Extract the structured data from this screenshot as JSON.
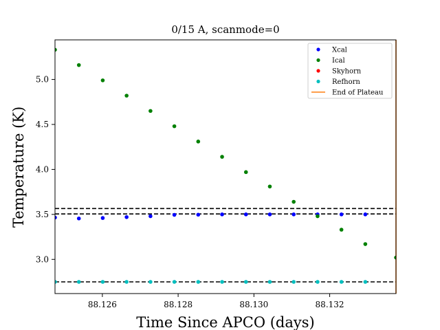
{
  "chart_data": {
    "type": "scatter",
    "title": "0/15 A, scanmode=0",
    "xlabel": "Time Since APCO (days)",
    "ylabel": "Temperature (K)",
    "xlim": [
      88.12475,
      88.13375
    ],
    "ylim": [
      2.62,
      5.44
    ],
    "xticks": [
      88.126,
      88.128,
      88.13,
      88.132
    ],
    "xtick_labels": [
      "88.126",
      "88.128",
      "88.130",
      "88.132"
    ],
    "yticks": [
      3.0,
      3.5,
      4.0,
      4.5,
      5.0
    ],
    "ytick_labels": [
      "3.0",
      "3.5",
      "4.0",
      "4.5",
      "5.0"
    ],
    "grid": false,
    "legend_position": "top-right",
    "series": [
      {
        "name": "Xcal",
        "color": "#0000ff",
        "marker": "dot",
        "x": [
          88.12475,
          88.12538,
          88.12601,
          88.12664,
          88.12727,
          88.1279,
          88.12853,
          88.12916,
          88.12979,
          88.13042,
          88.13105,
          88.13168,
          88.13231,
          88.13294
        ],
        "y": [
          3.465,
          3.455,
          3.46,
          3.47,
          3.48,
          3.495,
          3.497,
          3.5,
          3.5,
          3.5,
          3.5,
          3.5,
          3.5,
          3.5
        ]
      },
      {
        "name": "Ical",
        "color": "#008000",
        "marker": "dot",
        "x": [
          88.12475,
          88.12538,
          88.12601,
          88.12664,
          88.12727,
          88.1279,
          88.12853,
          88.12916,
          88.12979,
          88.13042,
          88.13105,
          88.13168,
          88.13231,
          88.13294,
          88.13375
        ],
        "y": [
          5.33,
          5.16,
          4.99,
          4.82,
          4.65,
          4.48,
          4.31,
          4.14,
          3.97,
          3.81,
          3.64,
          3.48,
          3.33,
          3.17,
          3.02
        ]
      },
      {
        "name": "Skyhorn",
        "color": "#ff0000",
        "marker": "dot",
        "x": [],
        "y": []
      },
      {
        "name": "Refhorn",
        "color": "#00bfbf",
        "marker": "dot",
        "x": [
          88.12475,
          88.12538,
          88.12601,
          88.12664,
          88.12727,
          88.1279,
          88.12853,
          88.12916,
          88.12979,
          88.13042,
          88.13105,
          88.13168,
          88.13231,
          88.13294
        ],
        "y": [
          2.75,
          2.75,
          2.75,
          2.75,
          2.75,
          2.75,
          2.75,
          2.75,
          2.75,
          2.75,
          2.75,
          2.75,
          2.75,
          2.75
        ]
      }
    ],
    "vertical_lines": [
      {
        "name": "End of Plateau",
        "color": "#ff7f0e",
        "x": 88.13375
      }
    ],
    "horizontal_lines": [
      {
        "y": 3.565,
        "color": "#000000",
        "style": "dashed"
      },
      {
        "y": 3.505,
        "color": "#000000",
        "style": "dashed"
      },
      {
        "y": 2.75,
        "color": "#000000",
        "style": "dashed"
      }
    ],
    "legend": [
      {
        "label": "Xcal",
        "kind": "dot",
        "color": "#0000ff"
      },
      {
        "label": "Ical",
        "kind": "dot",
        "color": "#008000"
      },
      {
        "label": "Skyhorn",
        "kind": "dot",
        "color": "#ff0000"
      },
      {
        "label": "Refhorn",
        "kind": "dot",
        "color": "#00bfbf"
      },
      {
        "label": "End of Plateau",
        "kind": "line",
        "color": "#ff7f0e"
      }
    ]
  }
}
